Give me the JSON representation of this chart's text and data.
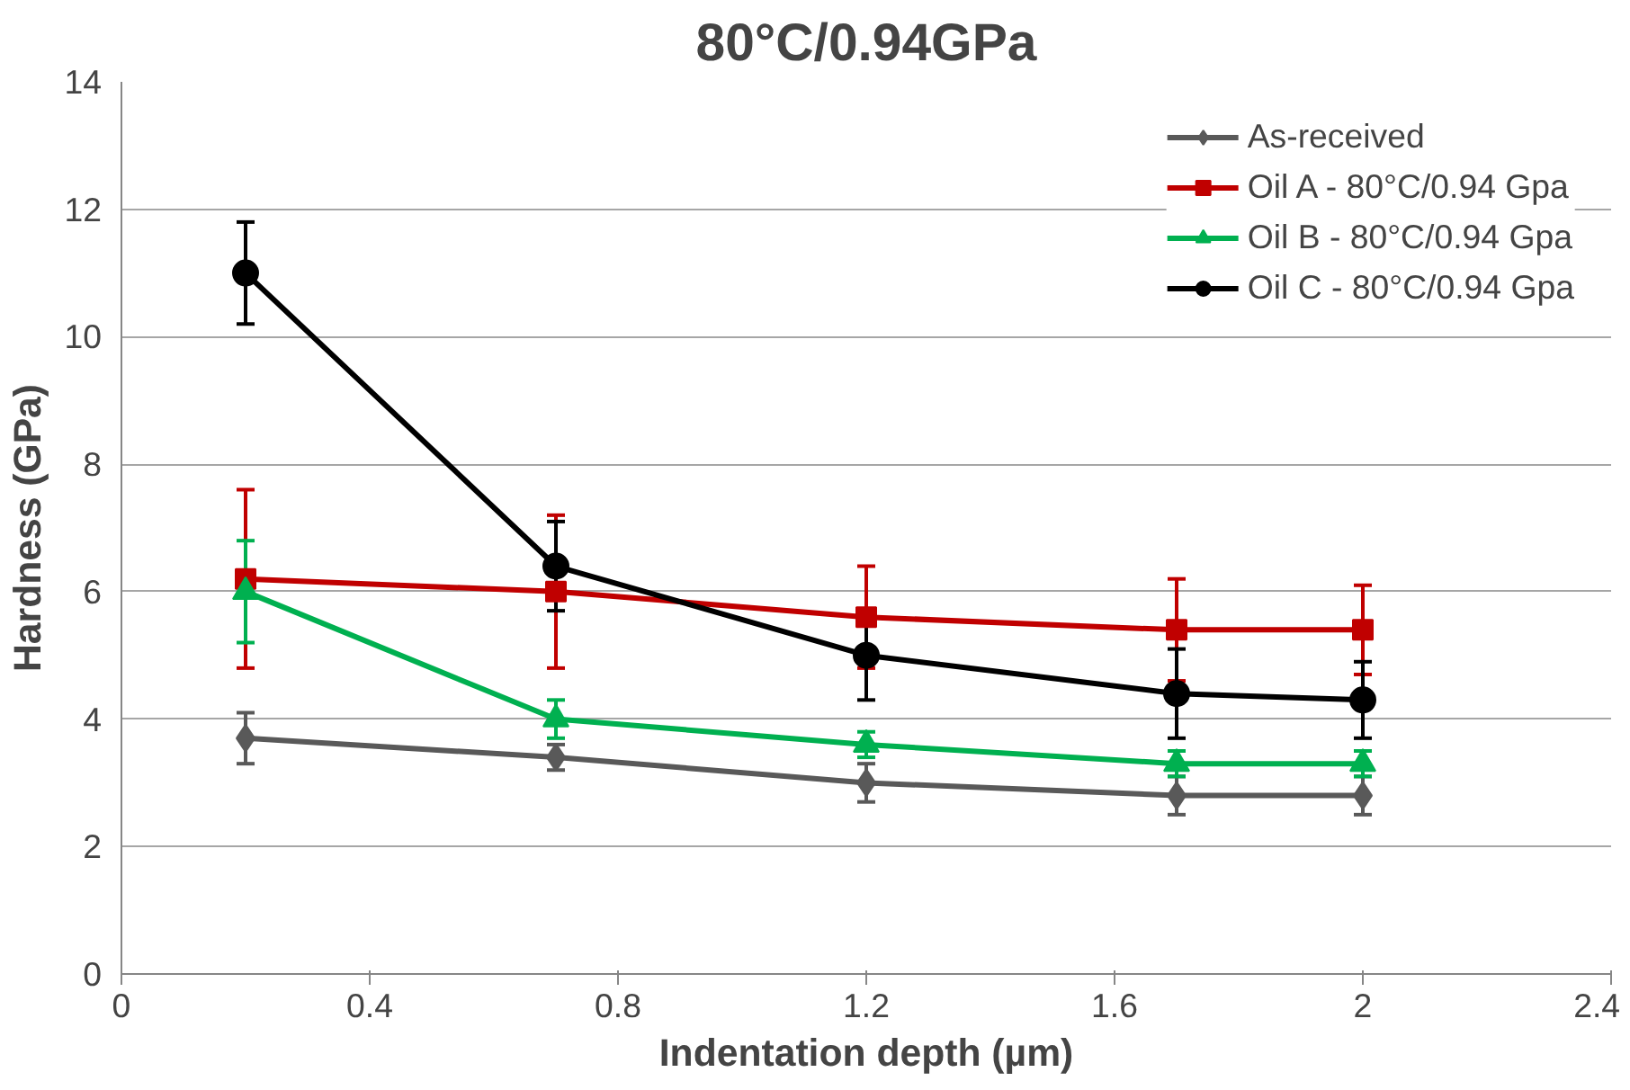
{
  "chart_data": {
    "type": "line",
    "title": "80°C/0.94GPa",
    "xlabel": "Indentation depth (µm)",
    "ylabel": "Hardness (GPa)",
    "x": [
      0.2,
      0.7,
      1.2,
      1.7,
      2.0
    ],
    "xlim": [
      0,
      2.4
    ],
    "xticks": [
      {
        "value": 0,
        "label": "0"
      },
      0.4,
      0.8,
      1.2,
      1.6,
      2,
      2.4
    ],
    "ylim": [
      0,
      14
    ],
    "yticks": [
      0,
      2,
      4,
      6,
      8,
      10,
      12,
      14
    ],
    "grid": "y",
    "legend": "top right",
    "line_style": "solid",
    "series": [
      {
        "name": "As-received",
        "color": "#595959",
        "marker": "diamond",
        "values": [
          3.7,
          3.4,
          3.0,
          2.8,
          2.8
        ],
        "errors": [
          0.4,
          0.2,
          0.3,
          0.3,
          0.3
        ]
      },
      {
        "name": "Oil A - 80°C/0.94 Gpa",
        "color": "#c00000",
        "marker": "square",
        "values": [
          6.2,
          6.0,
          5.6,
          5.4,
          5.4
        ],
        "errors": [
          1.4,
          1.2,
          0.8,
          0.8,
          0.7
        ]
      },
      {
        "name": "Oil B - 80°C/0.94 Gpa",
        "color": "#00b050",
        "marker": "triangle",
        "values": [
          6.0,
          4.0,
          3.6,
          3.3,
          3.3
        ],
        "errors": [
          0.8,
          0.3,
          0.2,
          0.2,
          0.2
        ]
      },
      {
        "name": "Oil C - 80°C/0.94 Gpa",
        "color": "#000000",
        "marker": "circle",
        "values": [
          11.0,
          6.4,
          5.0,
          4.4,
          4.3
        ],
        "errors": [
          0.8,
          0.7,
          0.7,
          0.7,
          0.6
        ]
      }
    ]
  }
}
